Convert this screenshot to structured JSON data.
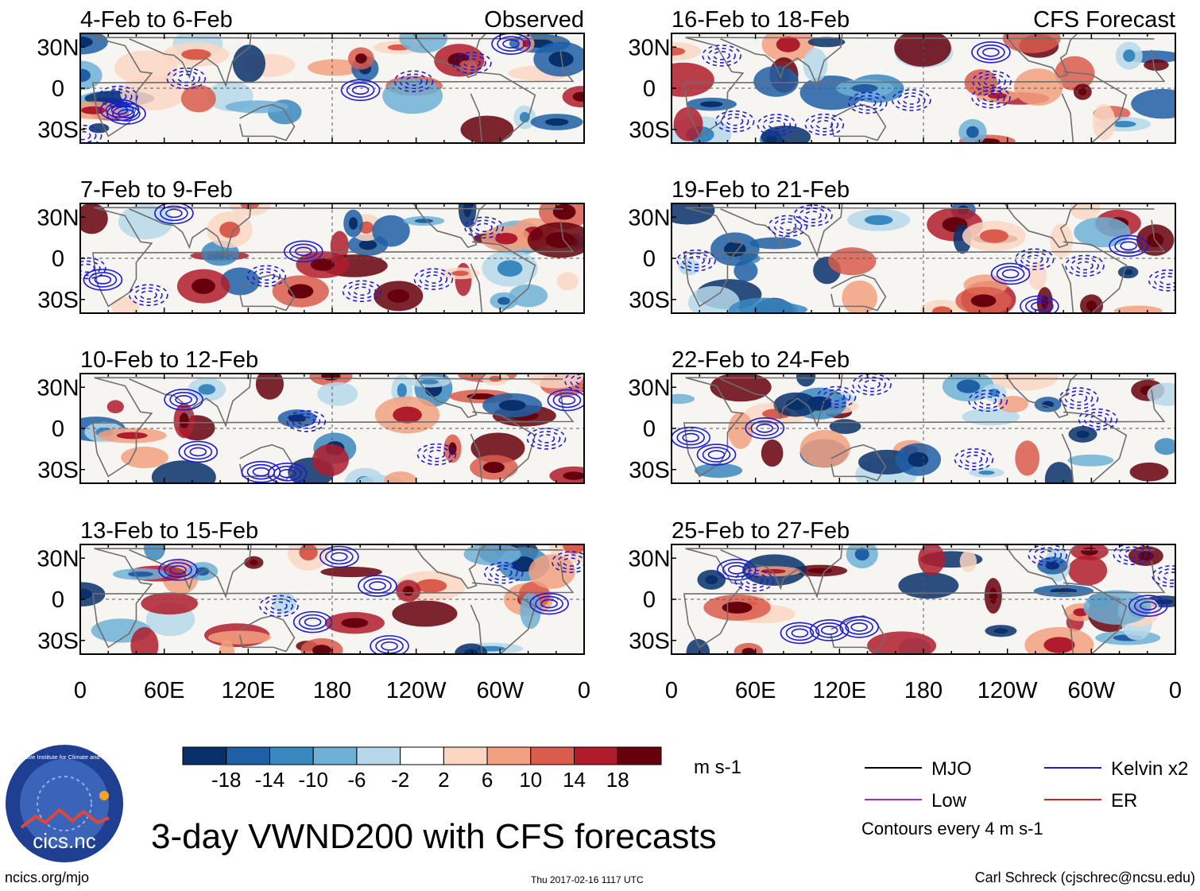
{
  "title": "3-day VWND200 with CFS forecasts",
  "footer": {
    "website": "ncics.org/mjo",
    "timestamp": "Thu 2017-02-16 1117 UTC",
    "author": "Carl Schreck (cjschrec@ncsu.edu)"
  },
  "logo": {
    "text": "cics.nc",
    "ring_text": "Cooperative Institute for Climate and Satellites",
    "colors": {
      "outer": "#1f3f93",
      "inner": "#3b63b8",
      "mountain": "#e0473b",
      "sun": "#f5a623"
    }
  },
  "colorbar": {
    "units": "m s-1",
    "tick_labels": [
      "-18",
      "-14",
      "-10",
      "-6",
      "-2",
      "2",
      "6",
      "10",
      "14",
      "18"
    ],
    "colors": [
      "#08306b",
      "#1f5fa6",
      "#3a88c0",
      "#6fb0d6",
      "#b6d8ea",
      "#ffffff",
      "#fcd6c3",
      "#f2a07f",
      "#d95c4c",
      "#b01c2c",
      "#67000d"
    ]
  },
  "legend": {
    "items": [
      {
        "label": "MJO",
        "color": "#000000"
      },
      {
        "label": "Kelvin x2",
        "color": "#1c1cd6"
      },
      {
        "label": "Low",
        "color": "#9933cc"
      },
      {
        "label": "ER",
        "color": "#cc2222"
      }
    ],
    "contour_note": "Contours every 4 m s-1"
  },
  "chart_data": {
    "type": "heatmap",
    "variable": "VWND200",
    "xlabel_ticks": [
      "0",
      "60E",
      "120E",
      "180",
      "120W",
      "60W",
      "0"
    ],
    "ylabel_ticks": [
      "30N",
      "0",
      "30S"
    ],
    "xlim_lon": [
      0,
      360
    ],
    "ylim_lat": [
      -40,
      40
    ],
    "panels": [
      {
        "label": "4-Feb to 6-Feb",
        "tag": "Observed"
      },
      {
        "label": "16-Feb to 18-Feb",
        "tag": "CFS Forecast"
      },
      {
        "label": "7-Feb to 9-Feb",
        "tag": ""
      },
      {
        "label": "19-Feb to 21-Feb",
        "tag": ""
      },
      {
        "label": "10-Feb to 12-Feb",
        "tag": ""
      },
      {
        "label": "22-Feb to 24-Feb",
        "tag": ""
      },
      {
        "label": "13-Feb to 15-Feb",
        "tag": ""
      },
      {
        "label": "25-Feb to 27-Feb",
        "tag": ""
      }
    ]
  }
}
